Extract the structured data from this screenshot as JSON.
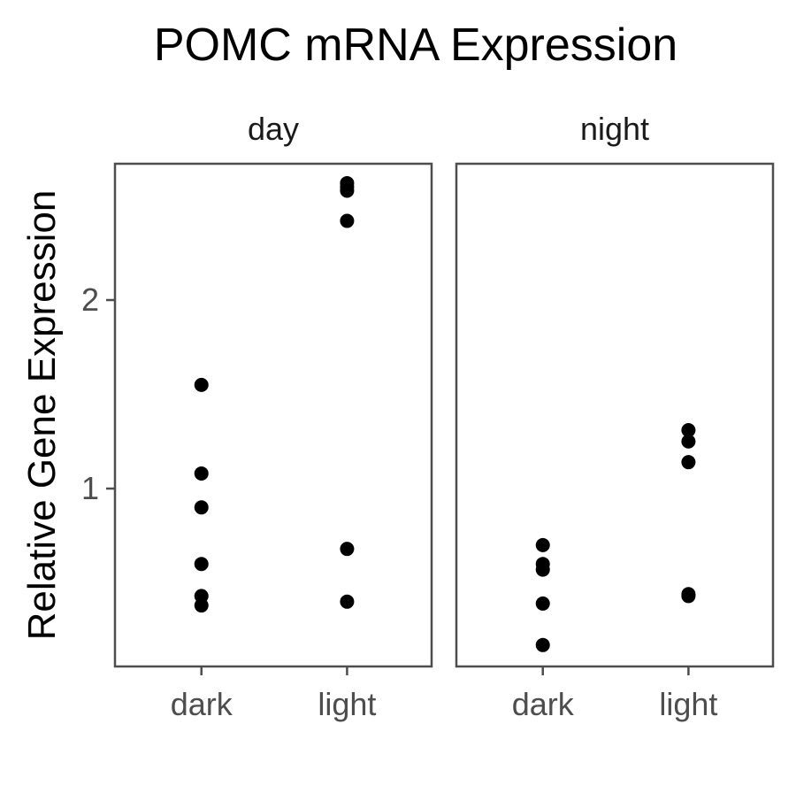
{
  "chart_data": {
    "type": "scatter",
    "title": "POMC mRNA Expression",
    "xlabel": "",
    "ylabel": "Relative Gene Expression",
    "ylim": [
      0.0,
      2.7
    ],
    "yticks": [
      1,
      2
    ],
    "grid": false,
    "legend": "none",
    "point_color": "#000000",
    "categories": [
      "dark",
      "light"
    ],
    "panels": [
      {
        "label": "day",
        "points": [
          {
            "x": "dark",
            "y": 1.55
          },
          {
            "x": "dark",
            "y": 1.08
          },
          {
            "x": "dark",
            "y": 0.9
          },
          {
            "x": "dark",
            "y": 0.6
          },
          {
            "x": "dark",
            "y": 0.43
          },
          {
            "x": "dark",
            "y": 0.38
          },
          {
            "x": "light",
            "y": 2.62
          },
          {
            "x": "light",
            "y": 2.6
          },
          {
            "x": "light",
            "y": 2.58
          },
          {
            "x": "light",
            "y": 2.42
          },
          {
            "x": "light",
            "y": 0.68
          },
          {
            "x": "light",
            "y": 0.4
          }
        ]
      },
      {
        "label": "night",
        "points": [
          {
            "x": "dark",
            "y": 0.7
          },
          {
            "x": "dark",
            "y": 0.6
          },
          {
            "x": "dark",
            "y": 0.57
          },
          {
            "x": "dark",
            "y": 0.39
          },
          {
            "x": "dark",
            "y": 0.17
          },
          {
            "x": "light",
            "y": 1.31
          },
          {
            "x": "light",
            "y": 1.25
          },
          {
            "x": "light",
            "y": 1.14
          },
          {
            "x": "light",
            "y": 0.44
          },
          {
            "x": "light",
            "y": 0.43
          }
        ]
      }
    ]
  }
}
